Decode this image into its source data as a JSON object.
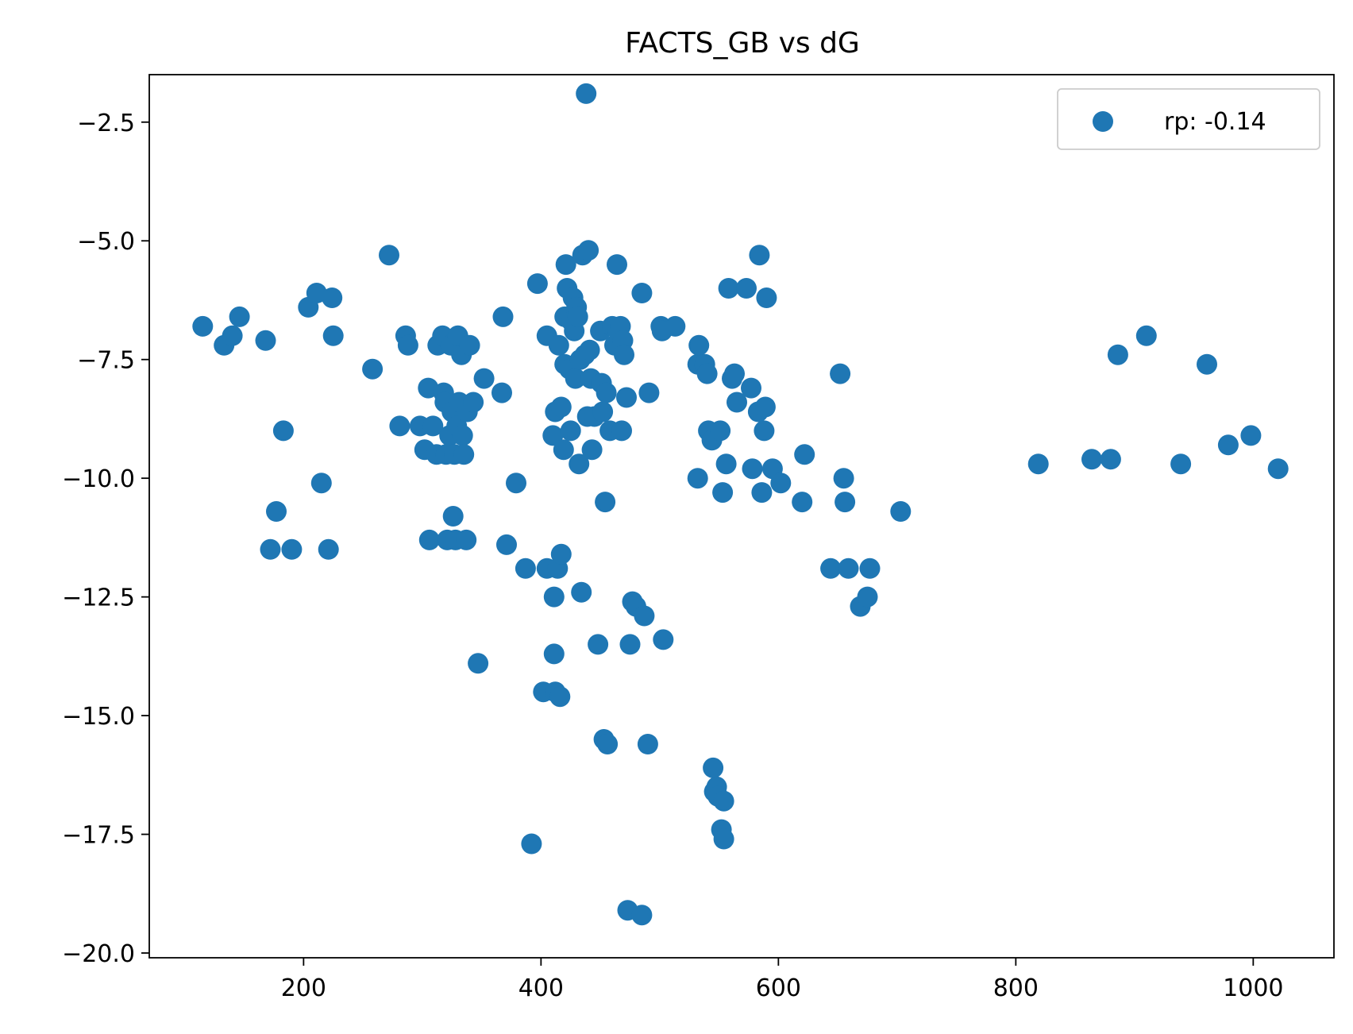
{
  "chart_data": {
    "type": "scatter",
    "title": "FACTS_GB vs dG",
    "xlabel": "",
    "ylabel": "",
    "xlim": [
      70,
      1068
    ],
    "ylim": [
      -20.1,
      -1.5
    ],
    "xticks": [
      200,
      400,
      600,
      800,
      1000
    ],
    "yticks": [
      -2.5,
      -5.0,
      -7.5,
      -10.0,
      -12.5,
      -15.0,
      -17.5,
      -20.0
    ],
    "grid": false,
    "legend": "top-right",
    "marker_color": "#1f77b4",
    "series": [
      {
        "name": "rp: -0.14",
        "points": [
          [
            115,
            -6.8
          ],
          [
            133,
            -7.2
          ],
          [
            140,
            -7.0
          ],
          [
            146,
            -6.6
          ],
          [
            168,
            -7.1
          ],
          [
            172,
            -11.5
          ],
          [
            177,
            -10.7
          ],
          [
            183,
            -9.0
          ],
          [
            190,
            -11.5
          ],
          [
            204,
            -6.4
          ],
          [
            211,
            -6.1
          ],
          [
            215,
            -10.1
          ],
          [
            221,
            -11.5
          ],
          [
            224,
            -6.2
          ],
          [
            225,
            -7.0
          ],
          [
            258,
            -7.7
          ],
          [
            272,
            -5.3
          ],
          [
            281,
            -8.9
          ],
          [
            286,
            -7.0
          ],
          [
            288,
            -7.2
          ],
          [
            298,
            -8.9
          ],
          [
            302,
            -9.4
          ],
          [
            305,
            -8.1
          ],
          [
            306,
            -11.3
          ],
          [
            309,
            -8.9
          ],
          [
            312,
            -9.5
          ],
          [
            313,
            -7.2
          ],
          [
            317,
            -7.0
          ],
          [
            318,
            -8.2
          ],
          [
            319,
            -8.4
          ],
          [
            320,
            -9.5
          ],
          [
            321,
            -11.3
          ],
          [
            323,
            -9.1
          ],
          [
            324,
            -7.2
          ],
          [
            325,
            -8.6
          ],
          [
            326,
            -10.8
          ],
          [
            327,
            -9.5
          ],
          [
            328,
            -11.3
          ],
          [
            329,
            -8.9
          ],
          [
            330,
            -7.0
          ],
          [
            331,
            -8.4
          ],
          [
            333,
            -7.4
          ],
          [
            334,
            -9.1
          ],
          [
            335,
            -9.5
          ],
          [
            337,
            -11.3
          ],
          [
            338,
            -8.6
          ],
          [
            340,
            -7.2
          ],
          [
            343,
            -8.4
          ],
          [
            347,
            -13.9
          ],
          [
            352,
            -7.9
          ],
          [
            367,
            -8.2
          ],
          [
            368,
            -6.6
          ],
          [
            371,
            -11.4
          ],
          [
            379,
            -10.1
          ],
          [
            387,
            -11.9
          ],
          [
            392,
            -17.7
          ],
          [
            397,
            -5.9
          ],
          [
            402,
            -14.5
          ],
          [
            405,
            -7.0
          ],
          [
            405,
            -11.9
          ],
          [
            410,
            -9.1
          ],
          [
            411,
            -13.7
          ],
          [
            411,
            -12.5
          ],
          [
            412,
            -14.5
          ],
          [
            412,
            -8.6
          ],
          [
            414,
            -11.9
          ],
          [
            415,
            -7.2
          ],
          [
            416,
            -14.6
          ],
          [
            417,
            -8.5
          ],
          [
            417,
            -11.6
          ],
          [
            419,
            -9.4
          ],
          [
            420,
            -7.6
          ],
          [
            420,
            -6.6
          ],
          [
            421,
            -5.5
          ],
          [
            422,
            -6.0
          ],
          [
            424,
            -7.7
          ],
          [
            425,
            -9.0
          ],
          [
            426,
            -6.7
          ],
          [
            427,
            -6.2
          ],
          [
            428,
            -6.9
          ],
          [
            429,
            -7.9
          ],
          [
            430,
            -6.4
          ],
          [
            431,
            -6.6
          ],
          [
            432,
            -9.7
          ],
          [
            433,
            -7.5
          ],
          [
            434,
            -12.4
          ],
          [
            435,
            -5.3
          ],
          [
            437,
            -7.4
          ],
          [
            438,
            -1.9
          ],
          [
            439,
            -8.7
          ],
          [
            440,
            -5.2
          ],
          [
            441,
            -7.3
          ],
          [
            442,
            -7.9
          ],
          [
            443,
            -9.4
          ],
          [
            445,
            -8.7
          ],
          [
            448,
            -13.5
          ],
          [
            450,
            -6.9
          ],
          [
            451,
            -8.0
          ],
          [
            452,
            -8.6
          ],
          [
            453,
            -15.5
          ],
          [
            454,
            -10.5
          ],
          [
            455,
            -8.2
          ],
          [
            456,
            -15.6
          ],
          [
            458,
            -9.0
          ],
          [
            460,
            -6.8
          ],
          [
            462,
            -7.2
          ],
          [
            464,
            -5.5
          ],
          [
            465,
            -6.9
          ],
          [
            467,
            -6.8
          ],
          [
            468,
            -9.0
          ],
          [
            469,
            -7.1
          ],
          [
            470,
            -7.4
          ],
          [
            472,
            -8.3
          ],
          [
            473,
            -19.1
          ],
          [
            475,
            -13.5
          ],
          [
            477,
            -12.6
          ],
          [
            480,
            -12.7
          ],
          [
            485,
            -19.2
          ],
          [
            485,
            -6.1
          ],
          [
            487,
            -12.9
          ],
          [
            490,
            -15.6
          ],
          [
            491,
            -8.2
          ],
          [
            501,
            -6.8
          ],
          [
            502,
            -6.9
          ],
          [
            503,
            -13.4
          ],
          [
            513,
            -6.8
          ],
          [
            532,
            -7.6
          ],
          [
            532,
            -10.0
          ],
          [
            533,
            -7.2
          ],
          [
            538,
            -7.6
          ],
          [
            540,
            -7.8
          ],
          [
            541,
            -9.0
          ],
          [
            544,
            -9.2
          ],
          [
            545,
            -16.1
          ],
          [
            546,
            -16.6
          ],
          [
            548,
            -16.5
          ],
          [
            549,
            -16.7
          ],
          [
            551,
            -9.0
          ],
          [
            552,
            -17.4
          ],
          [
            553,
            -10.3
          ],
          [
            554,
            -16.8
          ],
          [
            554,
            -17.6
          ],
          [
            556,
            -9.7
          ],
          [
            558,
            -6.0
          ],
          [
            561,
            -7.9
          ],
          [
            563,
            -7.8
          ],
          [
            565,
            -8.4
          ],
          [
            573,
            -6.0
          ],
          [
            577,
            -8.1
          ],
          [
            578,
            -9.8
          ],
          [
            583,
            -8.6
          ],
          [
            584,
            -5.3
          ],
          [
            586,
            -10.3
          ],
          [
            588,
            -9.0
          ],
          [
            589,
            -8.5
          ],
          [
            590,
            -6.2
          ],
          [
            595,
            -9.8
          ],
          [
            602,
            -10.1
          ],
          [
            620,
            -10.5
          ],
          [
            622,
            -9.5
          ],
          [
            644,
            -11.9
          ],
          [
            652,
            -7.8
          ],
          [
            655,
            -10.0
          ],
          [
            656,
            -10.5
          ],
          [
            659,
            -11.9
          ],
          [
            669,
            -12.7
          ],
          [
            675,
            -12.5
          ],
          [
            677,
            -11.9
          ],
          [
            703,
            -10.7
          ],
          [
            819,
            -9.7
          ],
          [
            864,
            -9.6
          ],
          [
            880,
            -9.6
          ],
          [
            886,
            -7.4
          ],
          [
            910,
            -7.0
          ],
          [
            939,
            -9.7
          ],
          [
            961,
            -7.6
          ],
          [
            979,
            -9.3
          ],
          [
            998,
            -9.1
          ],
          [
            1021,
            -9.8
          ]
        ]
      }
    ]
  }
}
